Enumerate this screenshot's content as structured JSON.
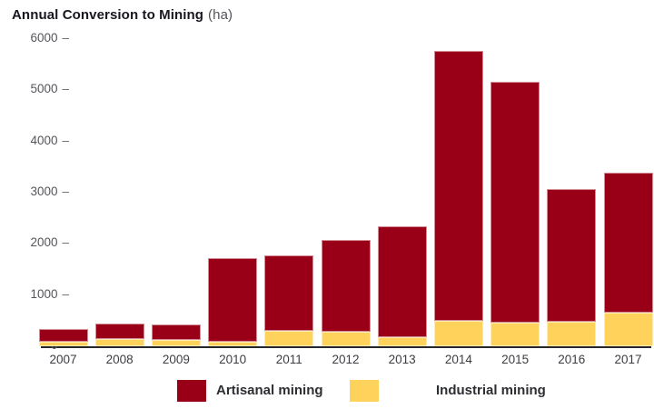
{
  "title": {
    "main": "Annual Conversion to Mining",
    "unit": "(ha)"
  },
  "legend": {
    "items": [
      {
        "label": "Artisanal mining",
        "color": "#990018"
      },
      {
        "label": "Industrial mining",
        "color": "#ffd35b"
      }
    ],
    "position": "bottom"
  },
  "colors": {
    "artisanal": "#990018",
    "industrial": "#ffd35b",
    "axis_line": "#27272b",
    "tick_text": "#55565c",
    "title_text": "#17171f"
  },
  "chart_data": {
    "type": "bar",
    "stacked": true,
    "title": "Annual Conversion to Mining (ha)",
    "xlabel": "",
    "ylabel": "",
    "unit": "ha",
    "categories": [
      "2007",
      "2008",
      "2009",
      "2010",
      "2011",
      "2012",
      "2013",
      "2014",
      "2015",
      "2016",
      "2017"
    ],
    "series": [
      {
        "name": "Industrial mining",
        "color": "#ffd35b",
        "values": [
          90,
          150,
          120,
          90,
          300,
          280,
          180,
          500,
          460,
          480,
          660
        ]
      },
      {
        "name": "Artisanal mining",
        "color": "#990018",
        "values": [
          240,
          310,
          300,
          1640,
          1470,
          1800,
          2160,
          5280,
          4700,
          2590,
          2730
        ]
      }
    ],
    "totals": [
      330,
      460,
      420,
      1730,
      1770,
      2080,
      2340,
      5780,
      5160,
      3070,
      3390
    ],
    "ylim": [
      0,
      6000
    ],
    "yticks": [
      0,
      1000,
      2000,
      3000,
      4000,
      5000,
      6000
    ],
    "ytick_suffix": "–",
    "grid": false,
    "legend_position": "bottom"
  }
}
